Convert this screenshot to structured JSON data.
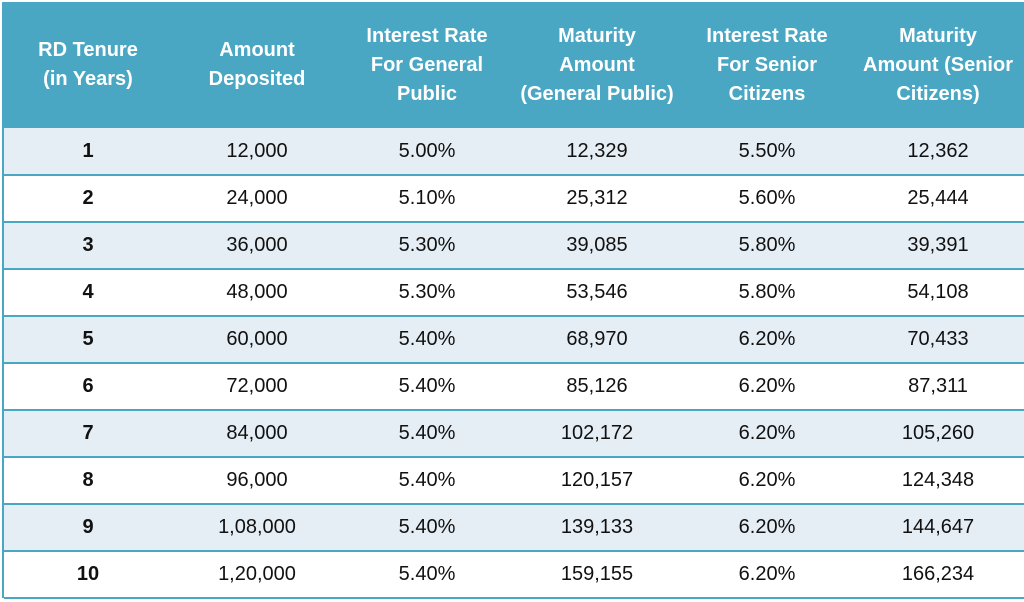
{
  "table": {
    "headers": [
      [
        "RD Tenure",
        "(in Years)"
      ],
      [
        "Amount",
        "Deposited"
      ],
      [
        "Interest Rate",
        "For General",
        "Public"
      ],
      [
        "Maturity",
        "Amount",
        "(General Public)"
      ],
      [
        "Interest Rate",
        "For Senior",
        "Citizens"
      ],
      [
        "Maturity",
        "Amount (Senior",
        "Citizens)"
      ]
    ],
    "rows": [
      [
        "1",
        "12,000",
        "5.00%",
        "12,329",
        "5.50%",
        "12,362"
      ],
      [
        "2",
        "24,000",
        "5.10%",
        "25,312",
        "5.60%",
        "25,444"
      ],
      [
        "3",
        "36,000",
        "5.30%",
        "39,085",
        "5.80%",
        "39,391"
      ],
      [
        "4",
        "48,000",
        "5.30%",
        "53,546",
        "5.80%",
        "54,108"
      ],
      [
        "5",
        "60,000",
        "5.40%",
        "68,970",
        "6.20%",
        "70,433"
      ],
      [
        "6",
        "72,000",
        "5.40%",
        "85,126",
        "6.20%",
        "87,311"
      ],
      [
        "7",
        "84,000",
        "5.40%",
        "102,172",
        "6.20%",
        "105,260"
      ],
      [
        "8",
        "96,000",
        "5.40%",
        "120,157",
        "6.20%",
        "124,348"
      ],
      [
        "9",
        "1,08,000",
        "5.40%",
        "139,133",
        "6.20%",
        "144,647"
      ],
      [
        "10",
        "1,20,000",
        "5.40%",
        "159,155",
        "6.20%",
        "166,234"
      ]
    ]
  },
  "colors": {
    "header_bg": "#4aa7c4",
    "header_text": "#ffffff",
    "stripe_bg": "#e5eef5",
    "row_bg": "#ffffff",
    "divider": "#4aa7c4"
  }
}
